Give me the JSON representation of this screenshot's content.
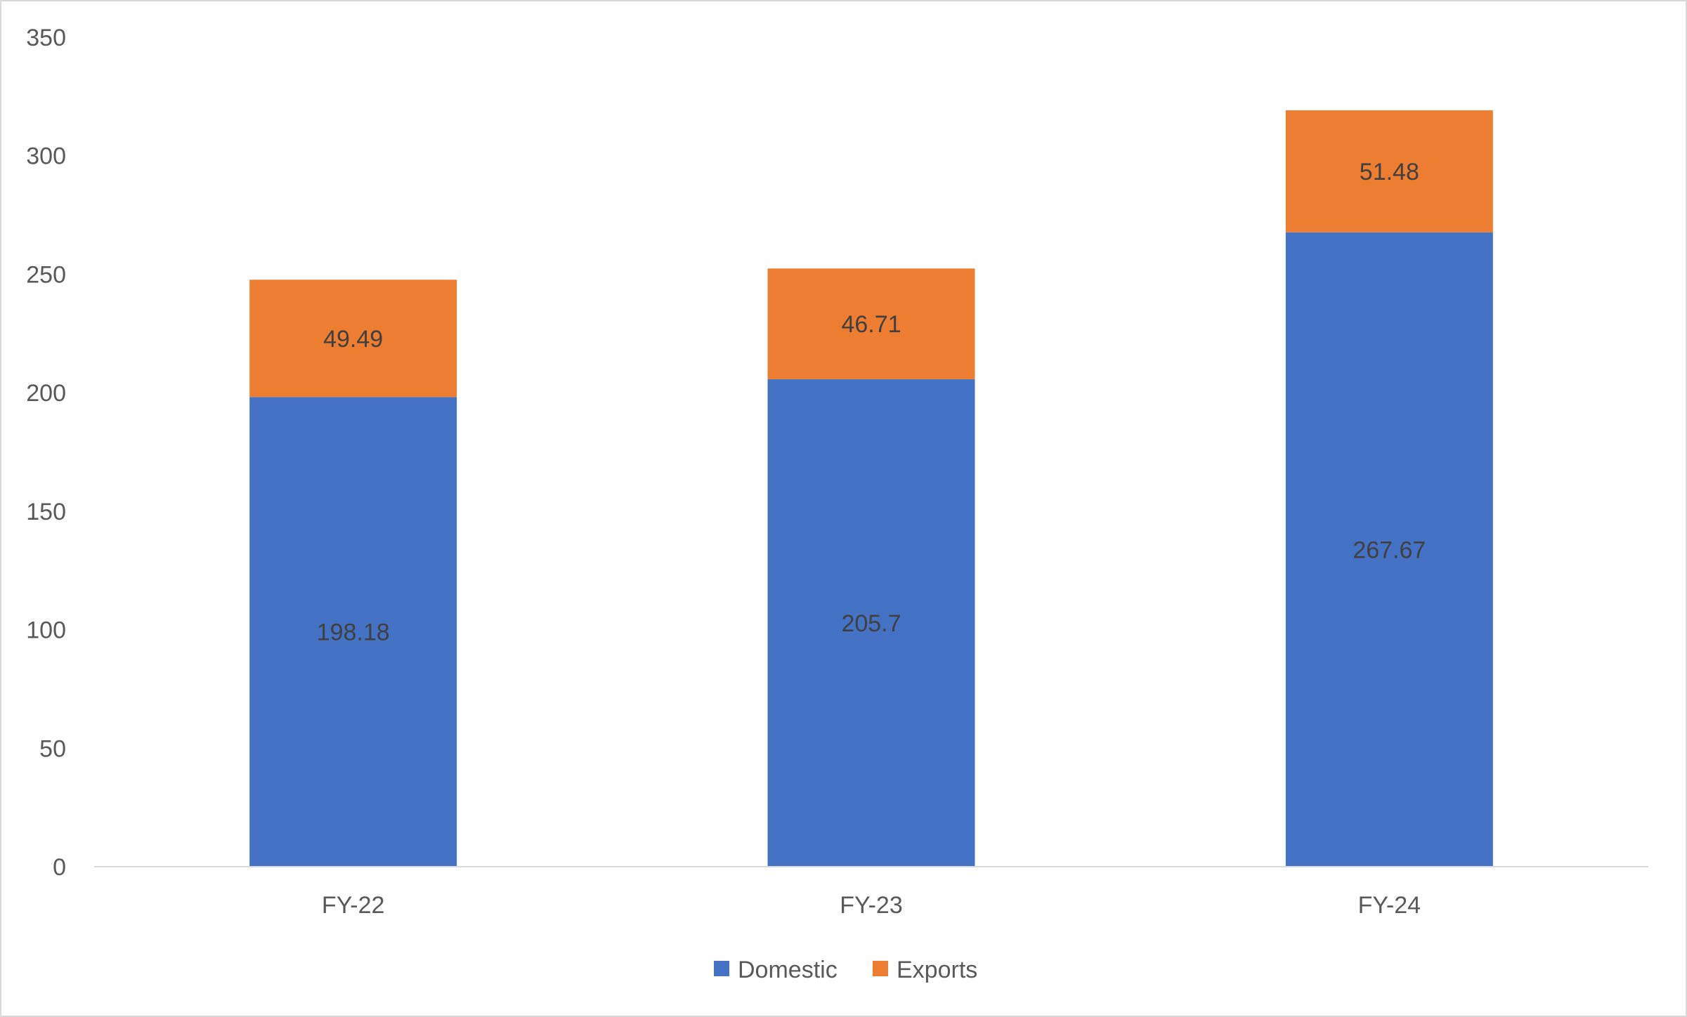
{
  "chart_data": {
    "type": "bar",
    "stacked": true,
    "title": "",
    "xlabel": "",
    "ylabel": "",
    "categories": [
      "FY-22",
      "FY-23",
      "FY-24"
    ],
    "series": [
      {
        "name": "Domestic",
        "values": [
          198.18,
          205.7,
          267.67
        ],
        "color": "#4472C4",
        "labels": [
          "198.18",
          "205.7",
          "267.67"
        ]
      },
      {
        "name": "Exports",
        "values": [
          49.49,
          46.71,
          51.48
        ],
        "color": "#ED7D31",
        "labels": [
          "49.49",
          "46.71",
          "51.48"
        ]
      }
    ],
    "ylim": [
      0,
      350
    ],
    "yticks": [
      0,
      50,
      100,
      150,
      200,
      250,
      300,
      350
    ],
    "grid": false,
    "legend": "bottom-center",
    "axis_color": "#d9d9d9"
  }
}
